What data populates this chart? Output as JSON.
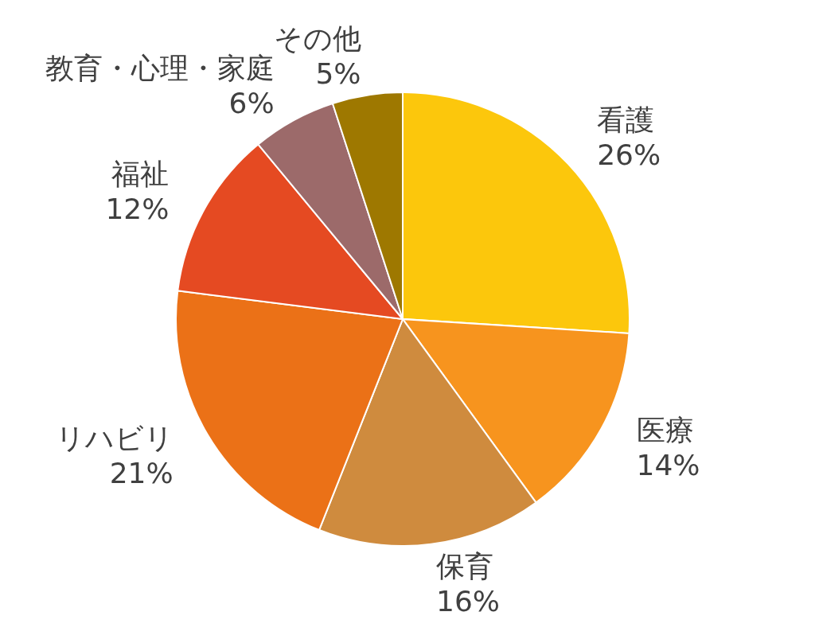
{
  "chart_data": {
    "type": "pie",
    "categories": [
      "看護",
      "医療",
      "保育",
      "リハビリ",
      "福祉",
      "教育・心理・家庭",
      "その他"
    ],
    "values": [
      26,
      14,
      16,
      21,
      12,
      6,
      5
    ],
    "value_labels": [
      "26%",
      "14%",
      "16%",
      "21%",
      "12%",
      "6%",
      "5%"
    ],
    "colors": [
      "#fcc70c",
      "#f7941e",
      "#cf8b3e",
      "#eb7117",
      "#e54a22",
      "#9c6a6a",
      "#9e7800"
    ],
    "legend": false
  }
}
